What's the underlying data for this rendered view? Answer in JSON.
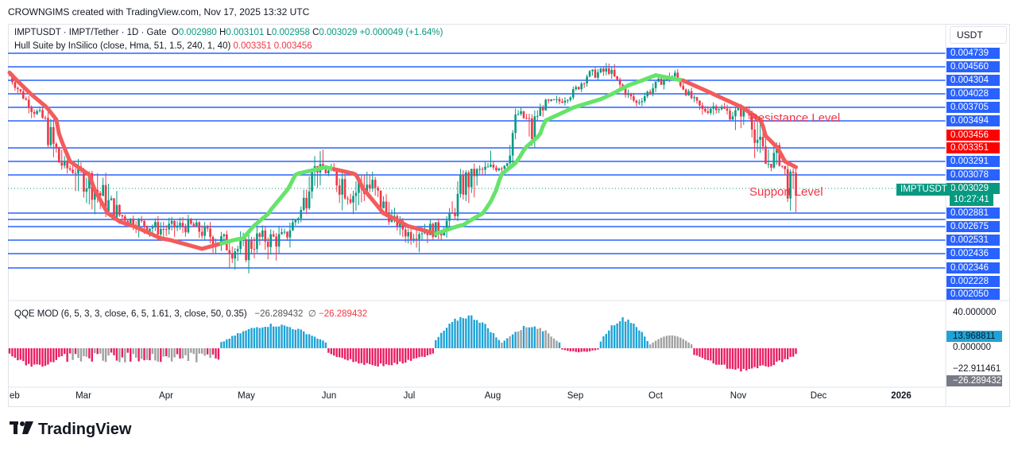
{
  "header": {
    "attribution": "CROWNGIMS created with TradingView.com, Nov 17, 2025 13:32 UTC"
  },
  "legend": {
    "symbol": "IMPTUSDT · IMPT/Tether · 1D · Gate",
    "o_label": "O",
    "o_value": "0.002980",
    "h_label": "H",
    "h_value": "0.003101",
    "l_label": "L",
    "l_value": "0.002958",
    "c_label": "C",
    "c_value": "0.003029",
    "change": "+0.000049 (+1.64%)",
    "hull_name": "Hull Suite by InSilico (close, Hma, 51, 1.5, 240, 1, 40)",
    "hull_v1": "0.003351",
    "hull_v2": "0.003456",
    "qqe_name": "QQE MOD (6, 5, 3, 3, close, 6, 5, 1.61, 3, close, 50, 0.35)",
    "qqe_v1": "−26.289432",
    "qqe_sym": "∅",
    "qqe_v2": "−26.289432"
  },
  "currency": "USDT",
  "brand": "TradingView",
  "colors": {
    "up": "#089981",
    "down": "#f23645",
    "hull_up": "#00e600",
    "hull_down": "#ff0000",
    "level": "#2962ff",
    "qqe_up": "#1fa3d6",
    "qqe_down": "#e91e63",
    "qqe_neutral": "#a0a0a0"
  },
  "chart_data": [
    {
      "type": "candlestick",
      "symbol": "IMPTUSDT",
      "timeframe": "1D",
      "x_ticks": [
        "eb",
        "Mar",
        "Apr",
        "May",
        "Jun",
        "Jul",
        "Aug",
        "Sep",
        "Oct",
        "Nov",
        "Dec",
        "2026"
      ],
      "price_axis_labels": [
        "0.004739",
        "0.004560",
        "0.004304",
        "0.004028",
        "0.003705",
        "0.003494",
        "0.003456",
        "0.003351",
        "0.003291",
        "0.003078",
        "0.003029",
        "0.002881",
        "0.002675",
        "0.002531",
        "0.002436",
        "0.002346",
        "0.002228",
        "0.002050"
      ],
      "horizontal_levels": [
        0.004739,
        0.00456,
        0.004304,
        0.004028,
        0.003705,
        0.003494,
        0.003351,
        0.003291,
        0.003078,
        0.003029,
        0.002881,
        0.00278,
        0.002675,
        0.002531,
        0.002436,
        0.002346
      ],
      "annotations": [
        "Resistance Level",
        "Support Level"
      ],
      "last_price": "0.003029",
      "countdown": "10:27:41",
      "hull_values": {
        "upper": "0.003456",
        "lower": "0.003351"
      },
      "price_anchors": [
        [
          0,
          0.0044
        ],
        [
          8,
          0.0037
        ],
        [
          20,
          0.0032
        ],
        [
          30,
          0.00305
        ],
        [
          45,
          0.00275
        ],
        [
          55,
          0.00265
        ],
        [
          65,
          0.0027
        ],
        [
          75,
          0.00255
        ],
        [
          85,
          0.00245
        ],
        [
          90,
          0.00255
        ],
        [
          100,
          0.00255
        ],
        [
          108,
          0.003
        ],
        [
          110,
          0.0032
        ],
        [
          118,
          0.0031
        ],
        [
          125,
          0.003
        ],
        [
          130,
          0.00305
        ],
        [
          135,
          0.00295
        ],
        [
          140,
          0.00275
        ],
        [
          145,
          0.0026
        ],
        [
          150,
          0.00265
        ],
        [
          157,
          0.00265
        ],
        [
          165,
          0.00305
        ],
        [
          172,
          0.00315
        ],
        [
          180,
          0.00325
        ],
        [
          185,
          0.0036
        ],
        [
          190,
          0.00345
        ],
        [
          195,
          0.0038
        ],
        [
          200,
          0.00385
        ],
        [
          205,
          0.00405
        ],
        [
          210,
          0.0044
        ],
        [
          215,
          0.00445
        ],
        [
          218,
          0.0045
        ],
        [
          222,
          0.0042
        ],
        [
          228,
          0.0038
        ],
        [
          232,
          0.00405
        ],
        [
          237,
          0.0043
        ],
        [
          242,
          0.0044
        ],
        [
          247,
          0.004
        ],
        [
          252,
          0.00365
        ],
        [
          257,
          0.00375
        ],
        [
          262,
          0.0036
        ],
        [
          268,
          0.00365
        ],
        [
          275,
          0.00325
        ],
        [
          280,
          0.0033
        ],
        [
          283,
          0.00305
        ],
        [
          286,
          0.00303
        ]
      ],
      "hull_anchors": [
        [
          0,
          0.00445
        ],
        [
          20,
          0.00335
        ],
        [
          40,
          0.00275
        ],
        [
          55,
          0.00255
        ],
        [
          70,
          0.00247
        ],
        [
          85,
          0.00255
        ],
        [
          95,
          0.0029
        ],
        [
          105,
          0.0031
        ],
        [
          115,
          0.0032
        ],
        [
          125,
          0.0031
        ],
        [
          135,
          0.0029
        ],
        [
          145,
          0.00268
        ],
        [
          155,
          0.0026
        ],
        [
          165,
          0.0027
        ],
        [
          175,
          0.00295
        ],
        [
          185,
          0.0033
        ],
        [
          195,
          0.0035
        ],
        [
          205,
          0.0037
        ],
        [
          215,
          0.0039
        ],
        [
          225,
          0.0042
        ],
        [
          235,
          0.0044
        ],
        [
          245,
          0.0043
        ],
        [
          255,
          0.00405
        ],
        [
          265,
          0.00375
        ],
        [
          275,
          0.00345
        ],
        [
          286,
          0.0032
        ]
      ],
      "hull_turns": [
        [
          0,
          "down"
        ],
        [
          77,
          "up"
        ],
        [
          118,
          "down"
        ],
        [
          155,
          "up"
        ],
        [
          245,
          "down"
        ]
      ]
    },
    {
      "type": "bar",
      "name": "QQE MOD",
      "y_axis_labels": [
        "40.000000",
        "13.968811",
        "0.000000",
        "−22.911461",
        "−26.289432"
      ],
      "segments": [
        {
          "from": 0,
          "to": 20,
          "min": -28,
          "peak": 0,
          "state": "down"
        },
        {
          "from": 21,
          "to": 76,
          "min": -12,
          "peak": 0,
          "state": "neutral"
        },
        {
          "from": 21,
          "to": 76,
          "min": -20,
          "peak": 0,
          "state": "down_mix"
        },
        {
          "from": 77,
          "to": 115,
          "min": 0,
          "peak": 35,
          "state": "up"
        },
        {
          "from": 116,
          "to": 154,
          "min": -26,
          "peak": 0,
          "state": "down"
        },
        {
          "from": 155,
          "to": 178,
          "min": 0,
          "peak": 48,
          "state": "up"
        },
        {
          "from": 179,
          "to": 200,
          "min": 0,
          "peak": 33,
          "state": "up_mix"
        },
        {
          "from": 201,
          "to": 214,
          "min": -6,
          "peak": 0,
          "state": "down"
        },
        {
          "from": 215,
          "to": 232,
          "min": 0,
          "peak": 44,
          "state": "up"
        },
        {
          "from": 233,
          "to": 248,
          "min": 0,
          "peak": 18,
          "state": "neutral"
        },
        {
          "from": 249,
          "to": 286,
          "min": -33,
          "peak": 0,
          "state": "down"
        }
      ]
    }
  ]
}
